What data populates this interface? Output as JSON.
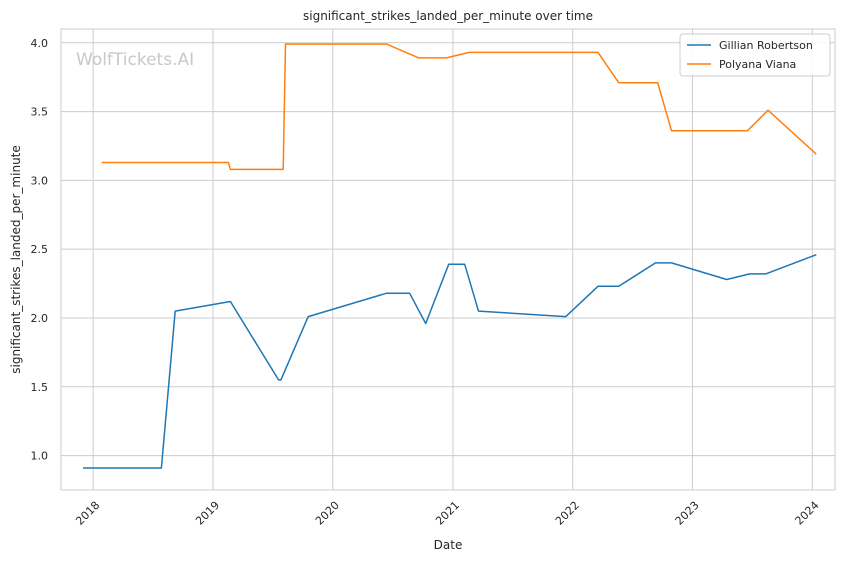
{
  "chart_data": {
    "type": "line",
    "title": "significant_strikes_landed_per_minute over time",
    "xlabel": "Date",
    "ylabel": "significant_strikes_landed_per_minute",
    "watermark": "WolfTickets.AI",
    "xlim": [
      "2017-09-25",
      "2024-03-10"
    ],
    "ylim": [
      0.75,
      4.1
    ],
    "x_ticks": [
      "2018",
      "2019",
      "2020",
      "2021",
      "2022",
      "2023",
      "2024"
    ],
    "y_ticks": [
      "1.0",
      "1.5",
      "2.0",
      "2.5",
      "3.0",
      "3.5",
      "4.0"
    ],
    "grid": true,
    "legend_position": "top-right",
    "series": [
      {
        "name": "Gillian Robertson",
        "color": "#1f77b4",
        "points": [
          [
            "2017-12-01",
            0.91
          ],
          [
            "2018-07-28",
            0.91
          ],
          [
            "2018-09-08",
            2.05
          ],
          [
            "2019-02-23",
            2.12
          ],
          [
            "2019-07-20",
            1.55
          ],
          [
            "2019-07-27",
            1.55
          ],
          [
            "2019-10-18",
            2.01
          ],
          [
            "2020-06-13",
            2.18
          ],
          [
            "2020-08-22",
            2.18
          ],
          [
            "2020-10-10",
            1.96
          ],
          [
            "2020-12-19",
            2.39
          ],
          [
            "2021-02-06",
            2.39
          ],
          [
            "2021-03-20",
            2.05
          ],
          [
            "2021-12-11",
            2.01
          ],
          [
            "2022-03-19",
            2.23
          ],
          [
            "2022-05-21",
            2.23
          ],
          [
            "2022-09-10",
            2.4
          ],
          [
            "2022-10-29",
            2.4
          ],
          [
            "2023-04-15",
            2.28
          ],
          [
            "2023-06-24",
            2.32
          ],
          [
            "2023-08-12",
            2.32
          ],
          [
            "2024-01-13",
            2.46
          ]
        ]
      },
      {
        "name": "Polyana Viana",
        "color": "#ff7f0e",
        "points": [
          [
            "2018-01-27",
            3.13
          ],
          [
            "2019-02-17",
            3.13
          ],
          [
            "2019-02-23",
            3.08
          ],
          [
            "2019-08-03",
            3.08
          ],
          [
            "2019-08-10",
            3.99
          ],
          [
            "2020-06-13",
            3.99
          ],
          [
            "2020-09-19",
            3.89
          ],
          [
            "2020-12-12",
            3.89
          ],
          [
            "2021-02-20",
            3.93
          ],
          [
            "2022-03-19",
            3.93
          ],
          [
            "2022-05-21",
            3.71
          ],
          [
            "2022-09-17",
            3.71
          ],
          [
            "2022-10-29",
            3.36
          ],
          [
            "2023-06-17",
            3.36
          ],
          [
            "2023-08-19",
            3.51
          ],
          [
            "2024-01-13",
            3.19
          ]
        ]
      }
    ]
  }
}
